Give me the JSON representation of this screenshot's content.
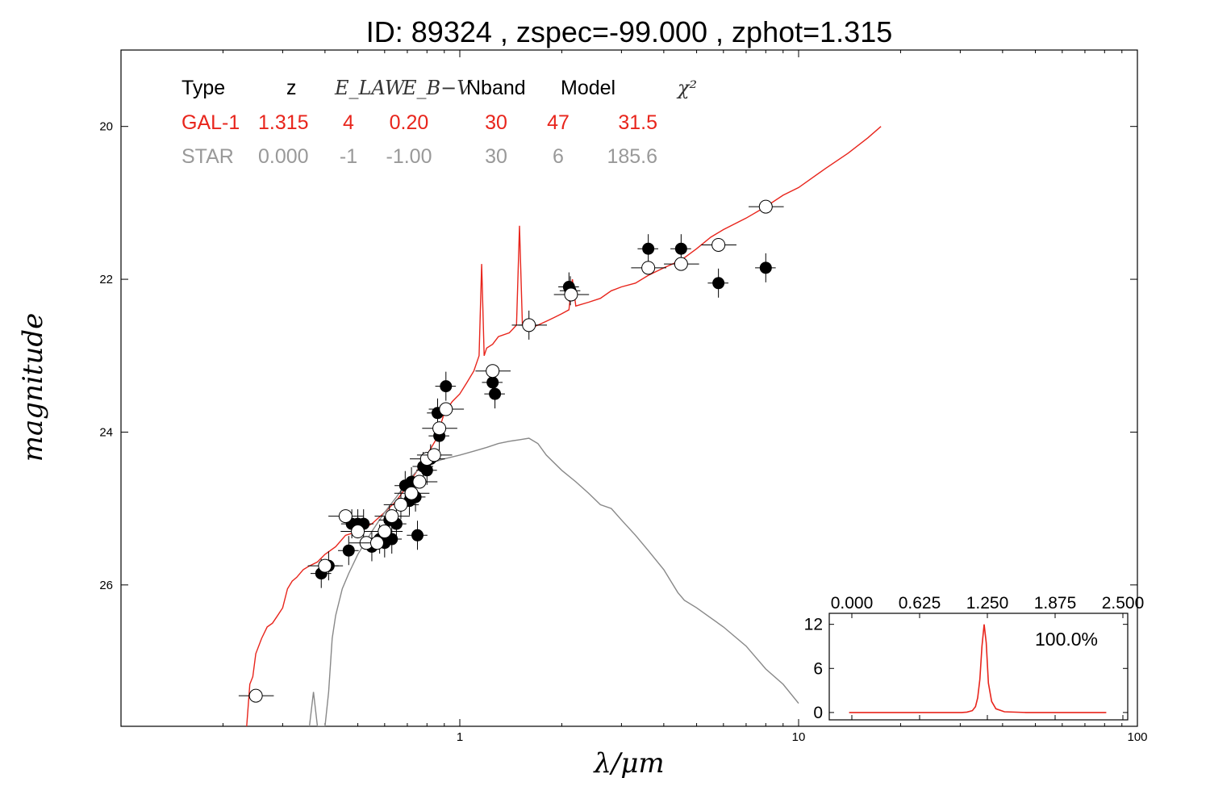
{
  "title": "ID:  89324 , zspec=-99.000 , zphot=1.315",
  "chart_data": [
    {
      "type": "scatter",
      "xlabel": "λ/μm",
      "ylabel": "magnitude",
      "x_scale": "log",
      "xlim": [
        0.1,
        100
      ],
      "ylim": [
        27.85,
        19.0
      ],
      "x_ticks": [
        1,
        10,
        100
      ],
      "x_tick_labels": [
        "1",
        "10",
        "100"
      ],
      "y_ticks": [
        20,
        22,
        24,
        26
      ],
      "y_tick_labels": [
        "20",
        "22",
        "24",
        "26"
      ],
      "grid": false,
      "table": {
        "headers": [
          "Type",
          "z",
          "E_LAW",
          "E_B−V",
          "Nband",
          "Model",
          "χ²"
        ],
        "rows": [
          {
            "cells": [
              "GAL-1",
              "1.315",
              "4",
              "0.20",
              "30",
              "47",
              "31.5"
            ],
            "color": "#e8251c"
          },
          {
            "cells": [
              "STAR",
              "0.000",
              "-1",
              "-1.00",
              "30",
              "6",
              "185.6"
            ],
            "color": "#999999"
          }
        ]
      },
      "series": [
        {
          "kind": "line",
          "color": "#e8251c",
          "points": [
            [
              0.235,
              27.85
            ],
            [
              0.24,
              27.3
            ],
            [
              0.245,
              27.2
            ],
            [
              0.25,
              26.9
            ],
            [
              0.26,
              26.7
            ],
            [
              0.27,
              26.55
            ],
            [
              0.28,
              26.5
            ],
            [
              0.29,
              26.4
            ],
            [
              0.3,
              26.3
            ],
            [
              0.31,
              26.05
            ],
            [
              0.32,
              25.95
            ],
            [
              0.33,
              25.9
            ],
            [
              0.345,
              25.8
            ],
            [
              0.36,
              25.75
            ],
            [
              0.38,
              25.7
            ],
            [
              0.4,
              25.6
            ],
            [
              0.43,
              25.5
            ],
            [
              0.46,
              25.35
            ],
            [
              0.5,
              25.3
            ],
            [
              0.55,
              25.2
            ],
            [
              0.6,
              25.05
            ],
            [
              0.65,
              24.9
            ],
            [
              0.7,
              24.7
            ],
            [
              0.75,
              24.5
            ],
            [
              0.8,
              24.3
            ],
            [
              0.85,
              24.1
            ],
            [
              0.9,
              23.75
            ],
            [
              0.95,
              23.6
            ],
            [
              1.0,
              23.5
            ],
            [
              1.05,
              23.35
            ],
            [
              1.1,
              23.2
            ],
            [
              1.14,
              23.0
            ],
            [
              1.16,
              21.8
            ],
            [
              1.18,
              23.0
            ],
            [
              1.2,
              22.9
            ],
            [
              1.25,
              22.85
            ],
            [
              1.3,
              22.75
            ],
            [
              1.4,
              22.7
            ],
            [
              1.47,
              22.6
            ],
            [
              1.5,
              21.3
            ],
            [
              1.53,
              22.6
            ],
            [
              1.6,
              22.65
            ],
            [
              1.7,
              22.6
            ],
            [
              1.8,
              22.55
            ],
            [
              1.9,
              22.5
            ],
            [
              2.0,
              22.45
            ],
            [
              2.1,
              22.4
            ],
            [
              2.15,
              22.0
            ],
            [
              2.2,
              22.35
            ],
            [
              2.4,
              22.3
            ],
            [
              2.6,
              22.25
            ],
            [
              2.8,
              22.15
            ],
            [
              3.0,
              22.1
            ],
            [
              3.3,
              22.05
            ],
            [
              3.6,
              21.95
            ],
            [
              4.0,
              21.85
            ],
            [
              4.5,
              21.75
            ],
            [
              5.0,
              21.6
            ],
            [
              5.5,
              21.45
            ],
            [
              6.0,
              21.35
            ],
            [
              7.0,
              21.2
            ],
            [
              8.0,
              21.05
            ],
            [
              9.0,
              20.9
            ],
            [
              10.0,
              20.8
            ],
            [
              12.0,
              20.55
            ],
            [
              14.0,
              20.35
            ],
            [
              16.0,
              20.15
            ],
            [
              17.5,
              20.0
            ]
          ]
        },
        {
          "kind": "line",
          "color": "#888888",
          "points": [
            [
              0.36,
              27.85
            ],
            [
              0.37,
              27.4
            ],
            [
              0.38,
              27.85
            ],
            [
              0.4,
              27.85
            ],
            [
              0.41,
              27.4
            ],
            [
              0.42,
              26.7
            ],
            [
              0.43,
              26.4
            ],
            [
              0.45,
              26.05
            ],
            [
              0.47,
              25.85
            ],
            [
              0.5,
              25.6
            ],
            [
              0.55,
              25.3
            ],
            [
              0.6,
              25.05
            ],
            [
              0.65,
              24.85
            ],
            [
              0.7,
              24.65
            ],
            [
              0.75,
              24.5
            ],
            [
              0.8,
              24.42
            ],
            [
              0.9,
              24.35
            ],
            [
              1.0,
              24.3
            ],
            [
              1.1,
              24.25
            ],
            [
              1.2,
              24.2
            ],
            [
              1.3,
              24.15
            ],
            [
              1.4,
              24.12
            ],
            [
              1.5,
              24.1
            ],
            [
              1.6,
              24.08
            ],
            [
              1.7,
              24.15
            ],
            [
              1.8,
              24.3
            ],
            [
              2.0,
              24.5
            ],
            [
              2.2,
              24.65
            ],
            [
              2.4,
              24.8
            ],
            [
              2.6,
              24.95
            ],
            [
              2.8,
              25.0
            ],
            [
              3.0,
              25.15
            ],
            [
              3.3,
              25.35
            ],
            [
              3.6,
              25.55
            ],
            [
              4.0,
              25.8
            ],
            [
              4.4,
              26.1
            ],
            [
              4.6,
              26.2
            ],
            [
              5.0,
              26.3
            ],
            [
              6.0,
              26.55
            ],
            [
              7.0,
              26.8
            ],
            [
              8.0,
              27.1
            ],
            [
              9.0,
              27.3
            ],
            [
              10.0,
              27.55
            ]
          ]
        },
        {
          "kind": "points",
          "marker": "filled",
          "points": [
            [
              0.39,
              25.85
            ],
            [
              0.41,
              25.75
            ],
            [
              0.47,
              25.55
            ],
            [
              0.48,
              25.2
            ],
            [
              0.5,
              25.2
            ],
            [
              0.52,
              25.2
            ],
            [
              0.55,
              25.5
            ],
            [
              0.58,
              25.4
            ],
            [
              0.6,
              25.45
            ],
            [
              0.62,
              25.15
            ],
            [
              0.63,
              25.4
            ],
            [
              0.65,
              25.2
            ],
            [
              0.67,
              24.95
            ],
            [
              0.69,
              24.7
            ],
            [
              0.71,
              24.9
            ],
            [
              0.72,
              24.65
            ],
            [
              0.74,
              24.85
            ],
            [
              0.75,
              25.35
            ],
            [
              0.78,
              24.45
            ],
            [
              0.8,
              24.5
            ],
            [
              0.82,
              24.35
            ],
            [
              0.86,
              23.75
            ],
            [
              0.87,
              24.05
            ],
            [
              0.91,
              23.4
            ],
            [
              1.25,
              23.35
            ],
            [
              1.27,
              23.5
            ],
            [
              1.6,
              22.6
            ],
            [
              2.1,
              22.1
            ],
            [
              2.12,
              22.15
            ],
            [
              3.6,
              21.6
            ],
            [
              4.5,
              21.6
            ],
            [
              5.8,
              22.05
            ],
            [
              8.0,
              21.85
            ]
          ]
        },
        {
          "kind": "points",
          "marker": "open",
          "points": [
            [
              0.25,
              27.45
            ],
            [
              0.4,
              25.75
            ],
            [
              0.46,
              25.1
            ],
            [
              0.5,
              25.3
            ],
            [
              0.53,
              25.45
            ],
            [
              0.57,
              25.45
            ],
            [
              0.6,
              25.3
            ],
            [
              0.63,
              25.1
            ],
            [
              0.67,
              24.95
            ],
            [
              0.72,
              24.8
            ],
            [
              0.76,
              24.65
            ],
            [
              0.8,
              24.35
            ],
            [
              0.84,
              24.3
            ],
            [
              0.87,
              23.95
            ],
            [
              0.91,
              23.7
            ],
            [
              1.25,
              23.2
            ],
            [
              1.6,
              22.6
            ],
            [
              2.13,
              22.2
            ],
            [
              3.6,
              21.85
            ],
            [
              4.5,
              21.8
            ],
            [
              5.8,
              21.55
            ],
            [
              8.0,
              21.05
            ]
          ]
        }
      ]
    },
    {
      "type": "line",
      "x_ticks": [
        0.0,
        0.625,
        1.25,
        1.875,
        2.5
      ],
      "x_tick_labels": [
        "0.000",
        "0.625",
        "1.250",
        "1.875",
        "2.500"
      ],
      "y_ticks": [
        0,
        6,
        12
      ],
      "y_tick_labels": [
        "0",
        "6",
        "12"
      ],
      "xlim": [
        0,
        2.5
      ],
      "ylim": [
        -1,
        13.5
      ],
      "annotation": "100.0%",
      "color": "#e8251c",
      "x": [
        0.05,
        0.5,
        1.0,
        1.1,
        1.15,
        1.2,
        1.23,
        1.25,
        1.27,
        1.29,
        1.31,
        1.33,
        1.35,
        1.38,
        1.42,
        1.5,
        1.7,
        2.0,
        2.45
      ],
      "y": [
        0,
        0,
        0,
        0,
        0.05,
        0.25,
        0.8,
        2.0,
        4.5,
        9.0,
        12.0,
        9.5,
        4.0,
        1.5,
        0.5,
        0.1,
        0,
        0,
        0
      ]
    }
  ]
}
